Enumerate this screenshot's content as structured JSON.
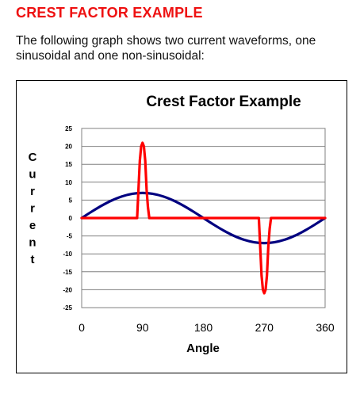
{
  "page": {
    "heading": "CREST FACTOR EXAMPLE",
    "intro": "The following graph shows two current waveforms, one sinusoidal and one non-sinusoidal:"
  },
  "colors": {
    "heading": "#ee1111",
    "sinusoidal": "#000080",
    "non_sinusoidal": "#ff0000",
    "plot_background": "#ffffff",
    "gridline": "#808080"
  },
  "chart_data": {
    "type": "line",
    "title": "Crest Factor Example",
    "xlabel": "Angle",
    "ylabel": "Current",
    "xlim": [
      0,
      360
    ],
    "ylim": [
      -25,
      25
    ],
    "x_ticks": [
      0,
      90,
      180,
      270,
      360
    ],
    "y_ticks": [
      25,
      20,
      15,
      10,
      5,
      0,
      -5,
      -10,
      -15,
      -20,
      -25
    ],
    "grid": true,
    "legend": "none",
    "series": [
      {
        "color": "#000080",
        "x": [
          0,
          15,
          30,
          45,
          60,
          75,
          90,
          105,
          120,
          135,
          150,
          165,
          180,
          195,
          210,
          225,
          240,
          255,
          270,
          285,
          300,
          315,
          330,
          345,
          360
        ],
        "y": [
          0,
          1.81,
          3.5,
          4.95,
          6.06,
          6.76,
          7,
          6.76,
          6.06,
          4.95,
          3.5,
          1.81,
          0,
          -1.81,
          -3.5,
          -4.95,
          -6.06,
          -6.76,
          -7,
          -6.76,
          -6.06,
          -4.95,
          -3.5,
          -1.81,
          0
        ]
      },
      {
        "color": "#ff0000",
        "x": [
          0,
          82,
          84,
          86,
          88,
          90,
          92,
          94,
          96,
          98,
          100,
          360
        ],
        "y": [
          0,
          0,
          8,
          16,
          20,
          21,
          20,
          16,
          8,
          3,
          0,
          0
        ]
      }
    ]
  }
}
